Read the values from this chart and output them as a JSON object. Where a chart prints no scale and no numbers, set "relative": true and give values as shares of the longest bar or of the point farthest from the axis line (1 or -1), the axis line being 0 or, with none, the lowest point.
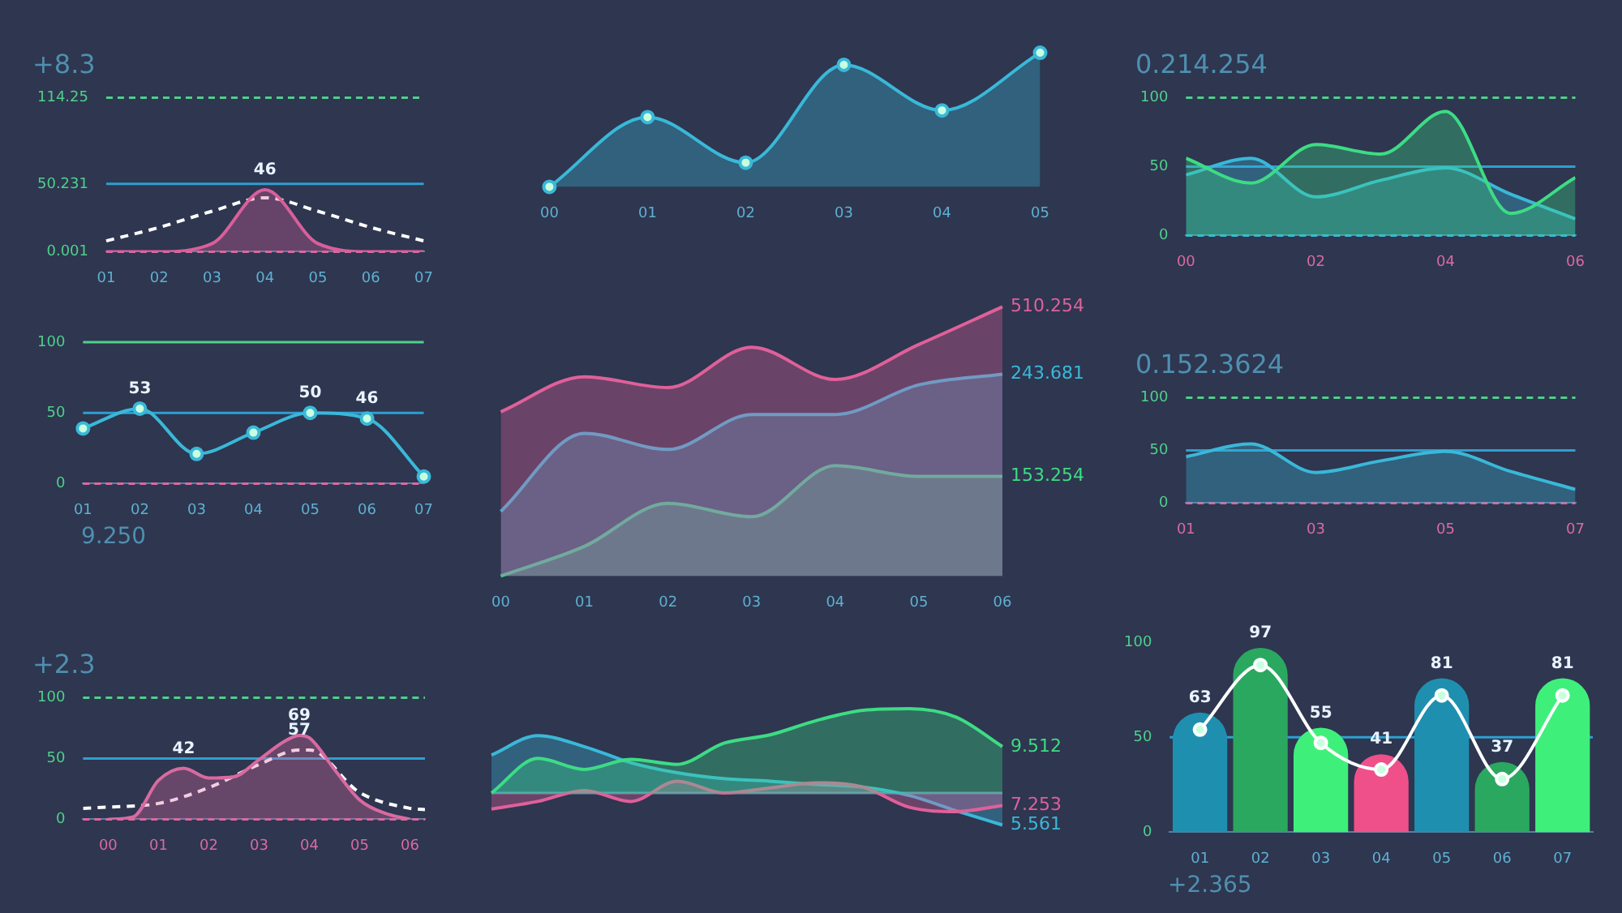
{
  "chart_data": [
    {
      "type": "area",
      "title": "+8.3",
      "categories": [
        "01",
        "02",
        "03",
        "04",
        "05",
        "06",
        "07"
      ],
      "ylim": [
        0,
        114.25
      ],
      "yticks": [
        0.001,
        50.231,
        114.25
      ],
      "ref_lines": [
        {
          "axis": "y",
          "value": 114.25,
          "color": "#4fd08a",
          "line_style": "dashed"
        },
        {
          "axis": "y",
          "value": 50.231,
          "color": "#2f9fd0"
        },
        {
          "axis": "y",
          "value": 0.001,
          "color": "#d96aa0",
          "line_style": "dashed"
        }
      ],
      "legend": false,
      "marker": "none",
      "series": [
        {
          "color": "#d95f9b",
          "values": [
            0,
            0,
            6,
            46,
            6,
            0,
            0
          ],
          "value_labels": [
            null,
            null,
            null,
            "46",
            null,
            null,
            null
          ]
        },
        {
          "type": "line",
          "color": "#ffffff",
          "line_style": "dashed",
          "values": [
            8,
            18,
            30,
            40,
            30,
            18,
            8
          ]
        }
      ]
    },
    {
      "type": "area",
      "relative": true,
      "categories": [
        "00",
        "01",
        "02",
        "03",
        "04",
        "05"
      ],
      "legend": false,
      "marker": "circle",
      "series": [
        {
          "color": "#3ab8d8",
          "values": [
            0,
            0.52,
            0.18,
            0.91,
            0.57,
            1
          ]
        }
      ]
    },
    {
      "type": "area",
      "title": "0.214.254",
      "x": [
        0,
        1,
        2,
        3,
        4,
        5,
        6
      ],
      "xlim": [
        0,
        6
      ],
      "xticks": [
        {
          "value": 0,
          "label": "00"
        },
        {
          "value": 2,
          "label": "02"
        },
        {
          "value": 4,
          "label": "04"
        },
        {
          "value": 6,
          "label": "06"
        }
      ],
      "ylim": [
        0,
        100
      ],
      "yticks": [
        0,
        50,
        100
      ],
      "ref_lines": [
        {
          "axis": "y",
          "value": 100,
          "color": "#4fd08a",
          "line_style": "dashed"
        },
        {
          "axis": "y",
          "value": 50,
          "color": "#2f9fd0"
        },
        {
          "axis": "y",
          "value": 0,
          "color": "#3ab8d8",
          "line_style": "dashed"
        }
      ],
      "legend": false,
      "marker": "none",
      "series": [
        {
          "color": "#3ddc84",
          "values": [
            56,
            38,
            66,
            59,
            90,
            16,
            42
          ]
        },
        {
          "color": "#3ab8d8",
          "values": [
            44,
            56,
            28,
            40,
            49,
            30,
            12
          ]
        }
      ]
    },
    {
      "type": "line",
      "categories": [
        "01",
        "02",
        "03",
        "04",
        "05",
        "06",
        "07"
      ],
      "ylim": [
        0,
        100
      ],
      "yticks": [
        0,
        50,
        100
      ],
      "ref_lines": [
        {
          "axis": "y",
          "value": 100,
          "color": "#4fd08a"
        },
        {
          "axis": "y",
          "value": 50,
          "color": "#2f9fd0"
        },
        {
          "axis": "y",
          "value": 0,
          "color": "#d96aa0",
          "line_style": "dashed"
        }
      ],
      "legend": false,
      "marker": "circle",
      "annotations": [
        "9.250"
      ],
      "series": [
        {
          "color": "#3ab8d8",
          "values": [
            39,
            53,
            21,
            36,
            50,
            46,
            5
          ],
          "value_labels": [
            null,
            "53",
            null,
            null,
            "50",
            "46",
            null
          ]
        }
      ]
    },
    {
      "type": "area",
      "relative": true,
      "categories": [
        "00",
        "01",
        "02",
        "03",
        "04",
        "05",
        "06"
      ],
      "legend": false,
      "marker": "none",
      "series": [
        {
          "name": "510.254",
          "color": "#e0609a",
          "values": [
            0.61,
            0.74,
            0.7,
            0.85,
            0.73,
            0.86,
            1.0
          ]
        },
        {
          "name": "243.681",
          "color": "#3ab8d8",
          "values": [
            0.24,
            0.53,
            0.47,
            0.6,
            0.6,
            0.71,
            0.75
          ]
        },
        {
          "name": "153.254",
          "color": "#3ddc84",
          "values": [
            0,
            0.11,
            0.27,
            0.22,
            0.41,
            0.37,
            0.37
          ]
        }
      ]
    },
    {
      "type": "area",
      "title": "0.152.3624",
      "x": [
        1,
        2,
        3,
        4,
        5,
        6,
        7
      ],
      "xlim": [
        1,
        7
      ],
      "xticks": [
        {
          "value": 1,
          "label": "01"
        },
        {
          "value": 3,
          "label": "03"
        },
        {
          "value": 5,
          "label": "05"
        },
        {
          "value": 7,
          "label": "07"
        }
      ],
      "ylim": [
        0,
        100
      ],
      "yticks": [
        0,
        50,
        100
      ],
      "ref_lines": [
        {
          "axis": "y",
          "value": 100,
          "color": "#4fd08a",
          "line_style": "dashed"
        },
        {
          "axis": "y",
          "value": 50,
          "color": "#2f9fd0"
        },
        {
          "axis": "y",
          "value": 0,
          "color": "#d96aa0",
          "line_style": "dashed"
        }
      ],
      "legend": false,
      "marker": "none",
      "series": [
        {
          "color": "#3ab8d8",
          "values": [
            44,
            56,
            29,
            40,
            49,
            30,
            13
          ]
        }
      ]
    },
    {
      "type": "area",
      "title": "+2.3",
      "x": [
        0,
        0.5,
        1,
        1.5,
        2,
        2.5,
        3,
        3.5,
        3.8,
        4,
        4.5,
        5,
        5.5,
        6
      ],
      "xlim": [
        -0.5,
        6.3
      ],
      "xticks": [
        {
          "value": 0,
          "label": "00"
        },
        {
          "value": 1,
          "label": "01"
        },
        {
          "value": 2,
          "label": "02"
        },
        {
          "value": 3,
          "label": "03"
        },
        {
          "value": 4,
          "label": "04"
        },
        {
          "value": 5,
          "label": "05"
        },
        {
          "value": 6,
          "label": "06"
        }
      ],
      "ylim": [
        0,
        100
      ],
      "yticks": [
        0,
        50,
        100
      ],
      "ref_lines": [
        {
          "axis": "y",
          "value": 100,
          "color": "#4fd08a",
          "line_style": "dashed"
        },
        {
          "axis": "y",
          "value": 50,
          "color": "#2f9fd0"
        },
        {
          "axis": "y",
          "value": 0,
          "color": "#d96aa0",
          "line_style": "dashed"
        }
      ],
      "legend": false,
      "marker": "none",
      "series": [
        {
          "color": "#d96aa0",
          "values": [
            0,
            2,
            32,
            42,
            34,
            35,
            49,
            64,
            69,
            67,
            41,
            16,
            5,
            0
          ],
          "value_labels": [
            null,
            null,
            null,
            "42",
            null,
            null,
            null,
            null,
            "69",
            null,
            null,
            null,
            null,
            null
          ]
        },
        {
          "type": "line",
          "color": "#ffffff",
          "line_style": "dashed",
          "x": [
            -0.5,
            0,
            1,
            2,
            3,
            3.8,
            4,
            5,
            6,
            6.3
          ],
          "values": [
            9,
            10,
            13,
            26,
            45,
            57,
            57,
            22,
            9,
            8
          ],
          "value_labels": [
            null,
            null,
            null,
            null,
            null,
            "57",
            null,
            null,
            null,
            null
          ]
        }
      ]
    },
    {
      "type": "area",
      "relative": true,
      "categories": [
        null,
        null,
        null,
        null,
        null,
        null,
        null,
        null,
        null,
        null,
        null,
        null
      ],
      "ref_lines": [
        {
          "axis": "y",
          "value": 0,
          "color": "#6a8fb0"
        }
      ],
      "legend": false,
      "marker": "none",
      "series": [
        {
          "name": "9.512",
          "color": "#3ddc84",
          "values": [
            0,
            0.41,
            0.28,
            0.4,
            0.34,
            0.59,
            0.69,
            0.86,
            0.98,
            1.0,
            0.9,
            0.55
          ]
        },
        {
          "name": "7.253",
          "color": "#e0609a",
          "values": [
            -0.19,
            -0.1,
            0.03,
            -0.1,
            0.14,
            0,
            0.06,
            0.12,
            0.07,
            -0.17,
            -0.22,
            -0.15
          ]
        },
        {
          "name": "5.561",
          "color": "#3ab8d8",
          "values": [
            0.45,
            0.68,
            0.55,
            0.36,
            0.24,
            0.17,
            0.14,
            0.1,
            0.07,
            -0.03,
            -0.21,
            -0.38
          ]
        }
      ]
    },
    {
      "type": "bar",
      "categories": [
        "01",
        "02",
        "03",
        "04",
        "05",
        "06",
        "07"
      ],
      "ylim": [
        0,
        100
      ],
      "yticks": [
        0,
        50,
        100
      ],
      "ref_lines": [
        {
          "axis": "y",
          "value": 50,
          "color": "#2f9fd0"
        }
      ],
      "legend": false,
      "marker": "circle",
      "annotations": [
        "+2.365"
      ],
      "series": [
        {
          "colors": [
            "#1f8fb0",
            "#2aa860",
            "#3ef07a",
            "#f0508a",
            "#1f8fb0",
            "#2aa860",
            "#3ef07a"
          ],
          "values": [
            63,
            97,
            55,
            41,
            81,
            37,
            81
          ],
          "value_labels": [
            "63",
            "97",
            "55",
            "41",
            "81",
            "37",
            "81"
          ]
        },
        {
          "type": "line",
          "color": "#ffffff",
          "values": [
            54,
            88,
            47,
            33,
            72,
            28,
            72
          ]
        }
      ]
    }
  ]
}
